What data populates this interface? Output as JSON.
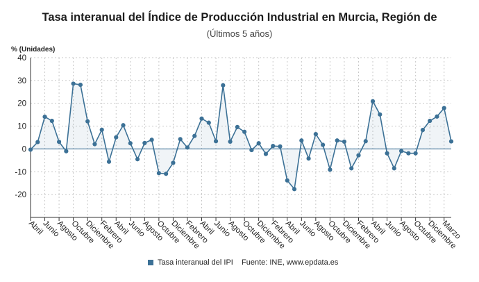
{
  "chart_data": {
    "type": "line",
    "title": "Tasa interanual del Índice de Producción Industrial en Murcia, Región de",
    "subtitle": "(Últimos 5 años)",
    "ylabel": "% (Unidades)",
    "ylim": [
      -30,
      40
    ],
    "yticks": [
      -20,
      -10,
      0,
      10,
      20,
      30,
      40
    ],
    "grid": true,
    "legend_position": "bottom",
    "x_tick_labels": [
      "Abril",
      "Junio",
      "Agosto",
      "Octubre",
      "Diciembre",
      "Febrero",
      "Abril",
      "Junio",
      "Agosto",
      "Octubre",
      "Diciembre",
      "Febrero",
      "Abril",
      "Junio",
      "Agosto",
      "Octubre",
      "Diciembre",
      "Febrero",
      "Abril",
      "Junio",
      "Agosto",
      "Octubre",
      "Diciembre",
      "Febrero",
      "Abril",
      "Junio",
      "Agosto",
      "Octubre",
      "Diciembre",
      "Marzo"
    ],
    "series": [
      {
        "name": "Tasa interanual del IPI",
        "color": "#3c7196",
        "values": [
          -0.3,
          3.0,
          14.1,
          12.3,
          3.1,
          -1.0,
          28.6,
          28.1,
          12.1,
          2.1,
          8.4,
          -5.6,
          5.1,
          10.4,
          2.5,
          -4.5,
          2.6,
          4.0,
          -10.6,
          -10.9,
          -6.1,
          4.3,
          0.6,
          5.7,
          13.3,
          11.5,
          3.4,
          27.9,
          3.2,
          9.6,
          7.5,
          -0.5,
          2.5,
          -2.2,
          1.3,
          1.1,
          -13.8,
          -17.6,
          3.7,
          -4.2,
          6.5,
          1.8,
          -9.1,
          3.7,
          3.2,
          -8.5,
          -2.8,
          3.4,
          20.9,
          15.1,
          -1.9,
          -8.5,
          -0.9,
          -1.9,
          -1.9,
          8.3,
          12.3,
          14.2,
          17.9,
          3.3
        ]
      }
    ]
  },
  "legend": {
    "label": "Tasa interanual del IPI",
    "color": "#3c7196"
  },
  "source": "Fuente: INE, www.epdata.es"
}
